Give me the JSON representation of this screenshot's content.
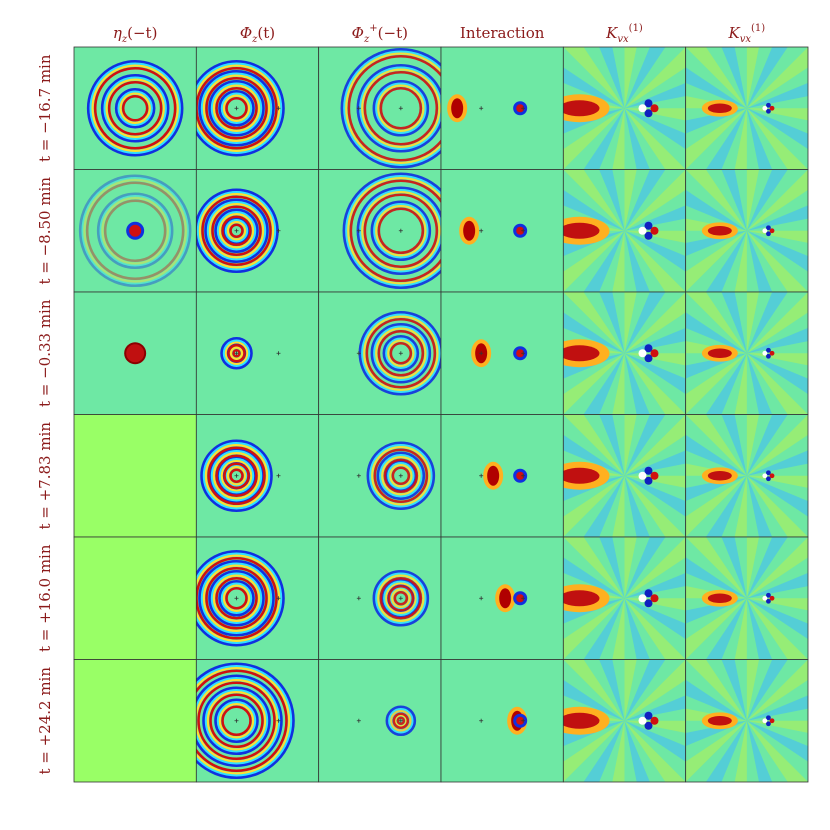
{
  "columns": [
    {
      "symbol": "η",
      "sub": "z",
      "suffix": "(−t)"
    },
    {
      "symbol": "Φ",
      "sub": "z",
      "suffix": "(t)"
    },
    {
      "symbol": "Φ",
      "sub": "z",
      "sup": "+",
      "suffix": "(−t)"
    },
    {
      "symbol": "Interaction"
    },
    {
      "symbol": "K",
      "sub": "vx",
      "sup": "(1)"
    },
    {
      "symbol": "K",
      "sub": "vx",
      "sup": "(1)"
    }
  ],
  "rows": [
    "t = −16.7 min",
    "t = −8.50 min",
    "t = −0.33 min",
    "t = +7.83 min",
    "t = +16.0 min",
    "t = +24.2 min"
  ]
}
